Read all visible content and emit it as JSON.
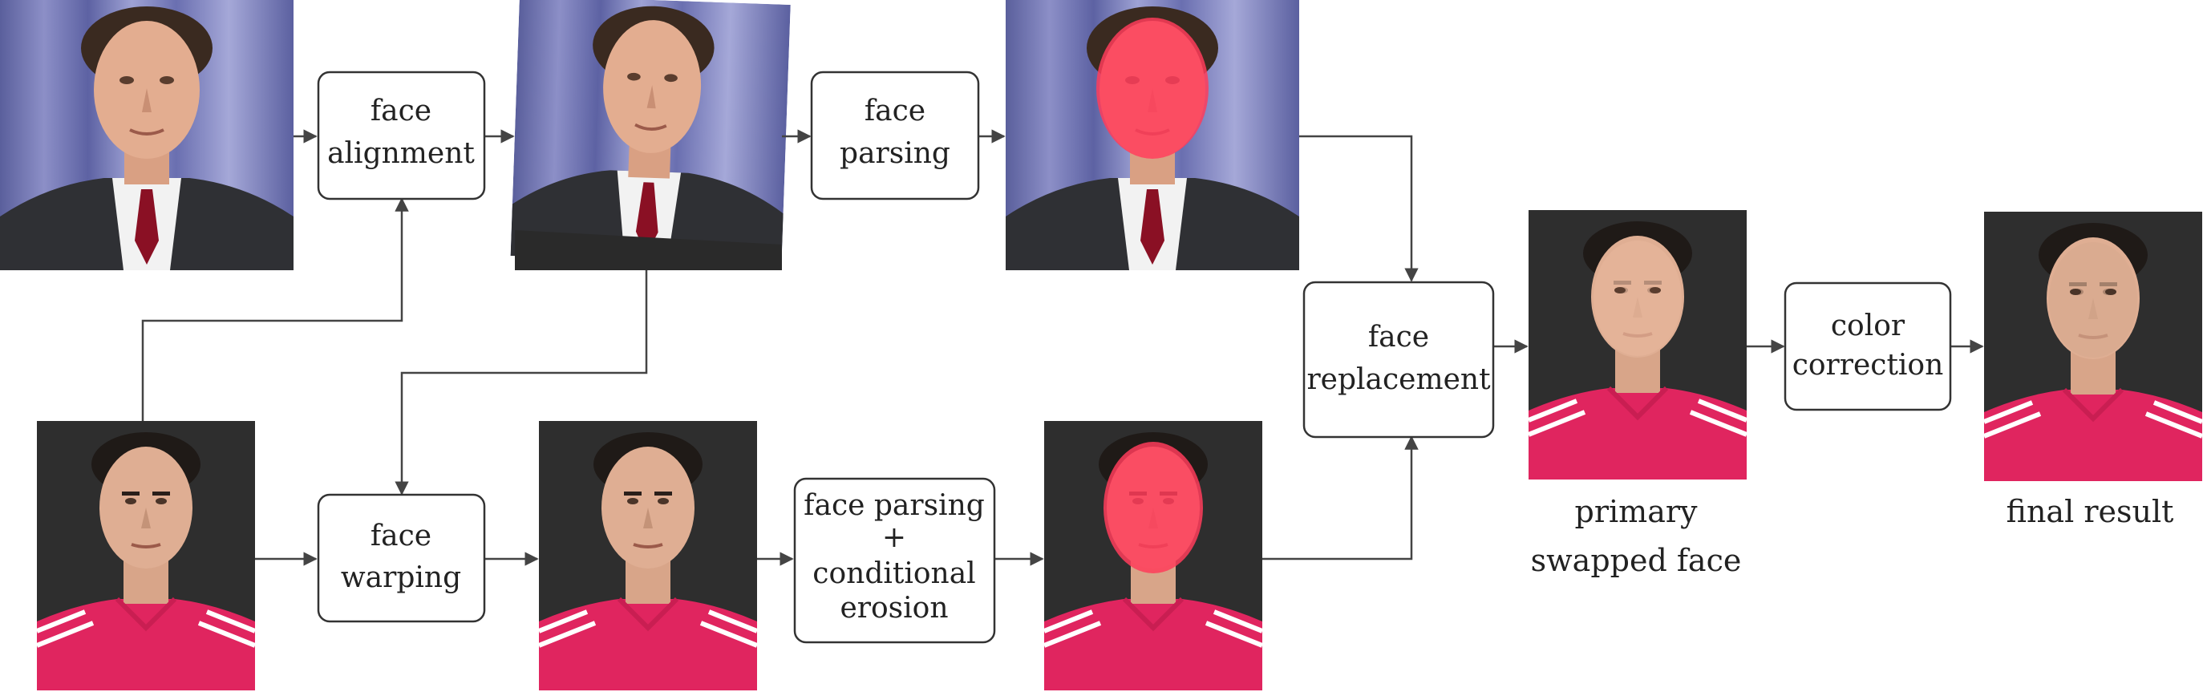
{
  "colors": {
    "stroke": "#333333",
    "text": "#222222",
    "mask": "#ff3c5a",
    "curtain": "#6f78b8",
    "photo_bg_dark": "#2b2b2b",
    "jersey": "#e0255f"
  },
  "process_boxes": {
    "face_alignment": [
      "face",
      "alignment"
    ],
    "face_parsing": [
      "face",
      "parsing"
    ],
    "face_warping": [
      "face",
      "warping"
    ],
    "face_parsing_erosion": [
      "face parsing",
      "+",
      "conditional",
      "erosion"
    ],
    "face_replacement": [
      "face",
      "replacement"
    ],
    "color_correction": [
      "color",
      "correction"
    ]
  },
  "captions": {
    "primary_swapped_face": [
      "primary",
      "swapped face"
    ],
    "final_result": [
      "final result"
    ]
  },
  "images": {
    "source_original": "source-face-photo",
    "source_aligned": "aligned-source-photo",
    "source_parsed": "parsed-source-photo",
    "target_original": "target-face-photo",
    "target_warped": "warped-target-photo",
    "target_parsed": "parsed-target-photo",
    "primary_swapped": "primary-swapped-photo",
    "final_result": "final-result-photo"
  }
}
